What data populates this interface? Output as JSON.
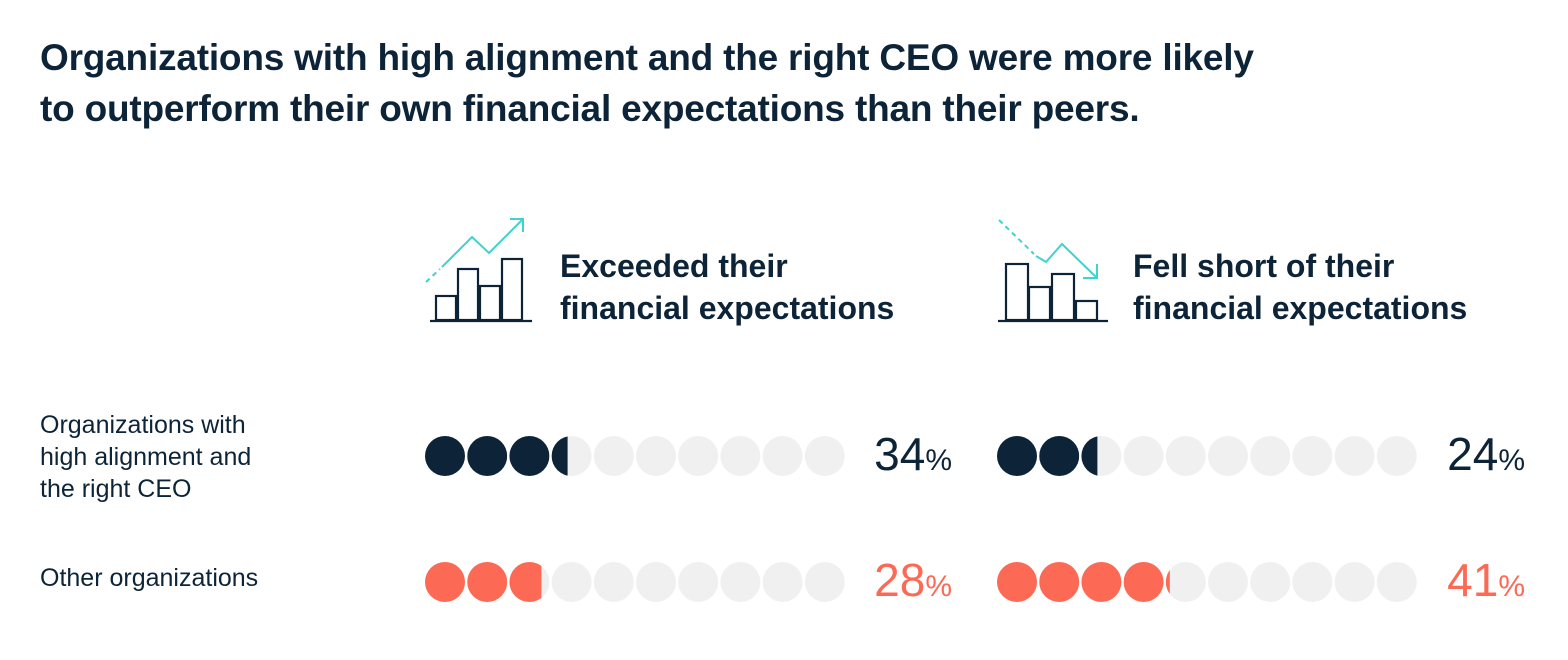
{
  "title": {
    "line1": "Organizations with high alignment and the right CEO were more likely",
    "line2": "to outperform their own financial expectations than their peers."
  },
  "colors": {
    "navy": "#0d2438",
    "coral": "#fc6a55",
    "empty": "#f0f0f0",
    "accent": "#3ed3cf"
  },
  "columns": [
    {
      "line1": "Exceeded their",
      "line2": "financial expectations",
      "icon": "bar-chart-trend-up-icon"
    },
    {
      "line1": "Fell short of their",
      "line2": "financial expectations",
      "icon": "bar-chart-trend-down-icon"
    }
  ],
  "rows": [
    {
      "line1": "Organizations with",
      "line2": "high alignment and",
      "line3": "the right CEO"
    },
    {
      "line1": "Other organizations"
    }
  ],
  "chart_data": {
    "type": "dot-plot",
    "categories": [
      "Exceeded their financial expectations",
      "Fell short of their financial expectations"
    ],
    "unit": "%",
    "dots_total": 10,
    "series": [
      {
        "name": "Organizations with high alignment and the right CEO",
        "values": [
          34,
          24
        ],
        "color": "#0d2438"
      },
      {
        "name": "Other organizations",
        "values": [
          28,
          41
        ],
        "color": "#fc6a55"
      }
    ],
    "labels": [
      [
        "34",
        "24"
      ],
      [
        "28",
        "41"
      ]
    ]
  }
}
